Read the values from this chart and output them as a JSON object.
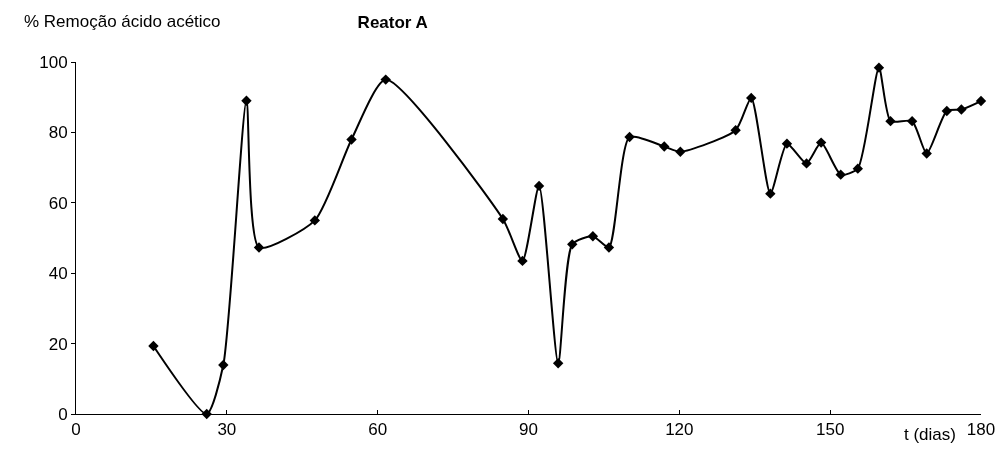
{
  "chart_data": {
    "type": "line",
    "title": "Reator A",
    "xlabel": "t (dias)",
    "ylabel": "% Remoção ácido acético",
    "x": [
      15.4,
      26,
      29.3,
      33.9,
      36.4,
      47.5,
      54.8,
      61.6,
      84.9,
      88.8,
      92.1,
      95.9,
      98.7,
      102.8,
      106,
      110.1,
      117,
      120.2,
      131.2,
      134.3,
      138.1,
      141.4,
      145.3,
      148.2,
      152.1,
      155.5,
      159.7,
      162,
      166.3,
      169.2,
      173.2,
      176.1,
      180
    ],
    "series": [
      {
        "color": "#000000",
        "values": [
          19.3,
          0,
          13.9,
          89,
          47.3,
          55,
          78,
          95,
          55.4,
          43.5,
          64.8,
          14.4,
          48.2,
          50.5,
          47.3,
          78.7,
          76,
          74.5,
          80.6,
          89.8,
          62.6,
          76.8,
          71.2,
          77.1,
          68,
          69.7,
          98.4,
          83.2,
          83.2,
          74,
          86.1,
          86.5,
          88.9
        ]
      }
    ],
    "xlim": [
      0,
      180
    ],
    "xticks": [
      0,
      30,
      60,
      90,
      120,
      150,
      180
    ],
    "ylim": [
      0,
      100
    ],
    "yticks": [
      0,
      20,
      40,
      60,
      80,
      100
    ],
    "marker": "diamond",
    "line_style": "solid"
  }
}
